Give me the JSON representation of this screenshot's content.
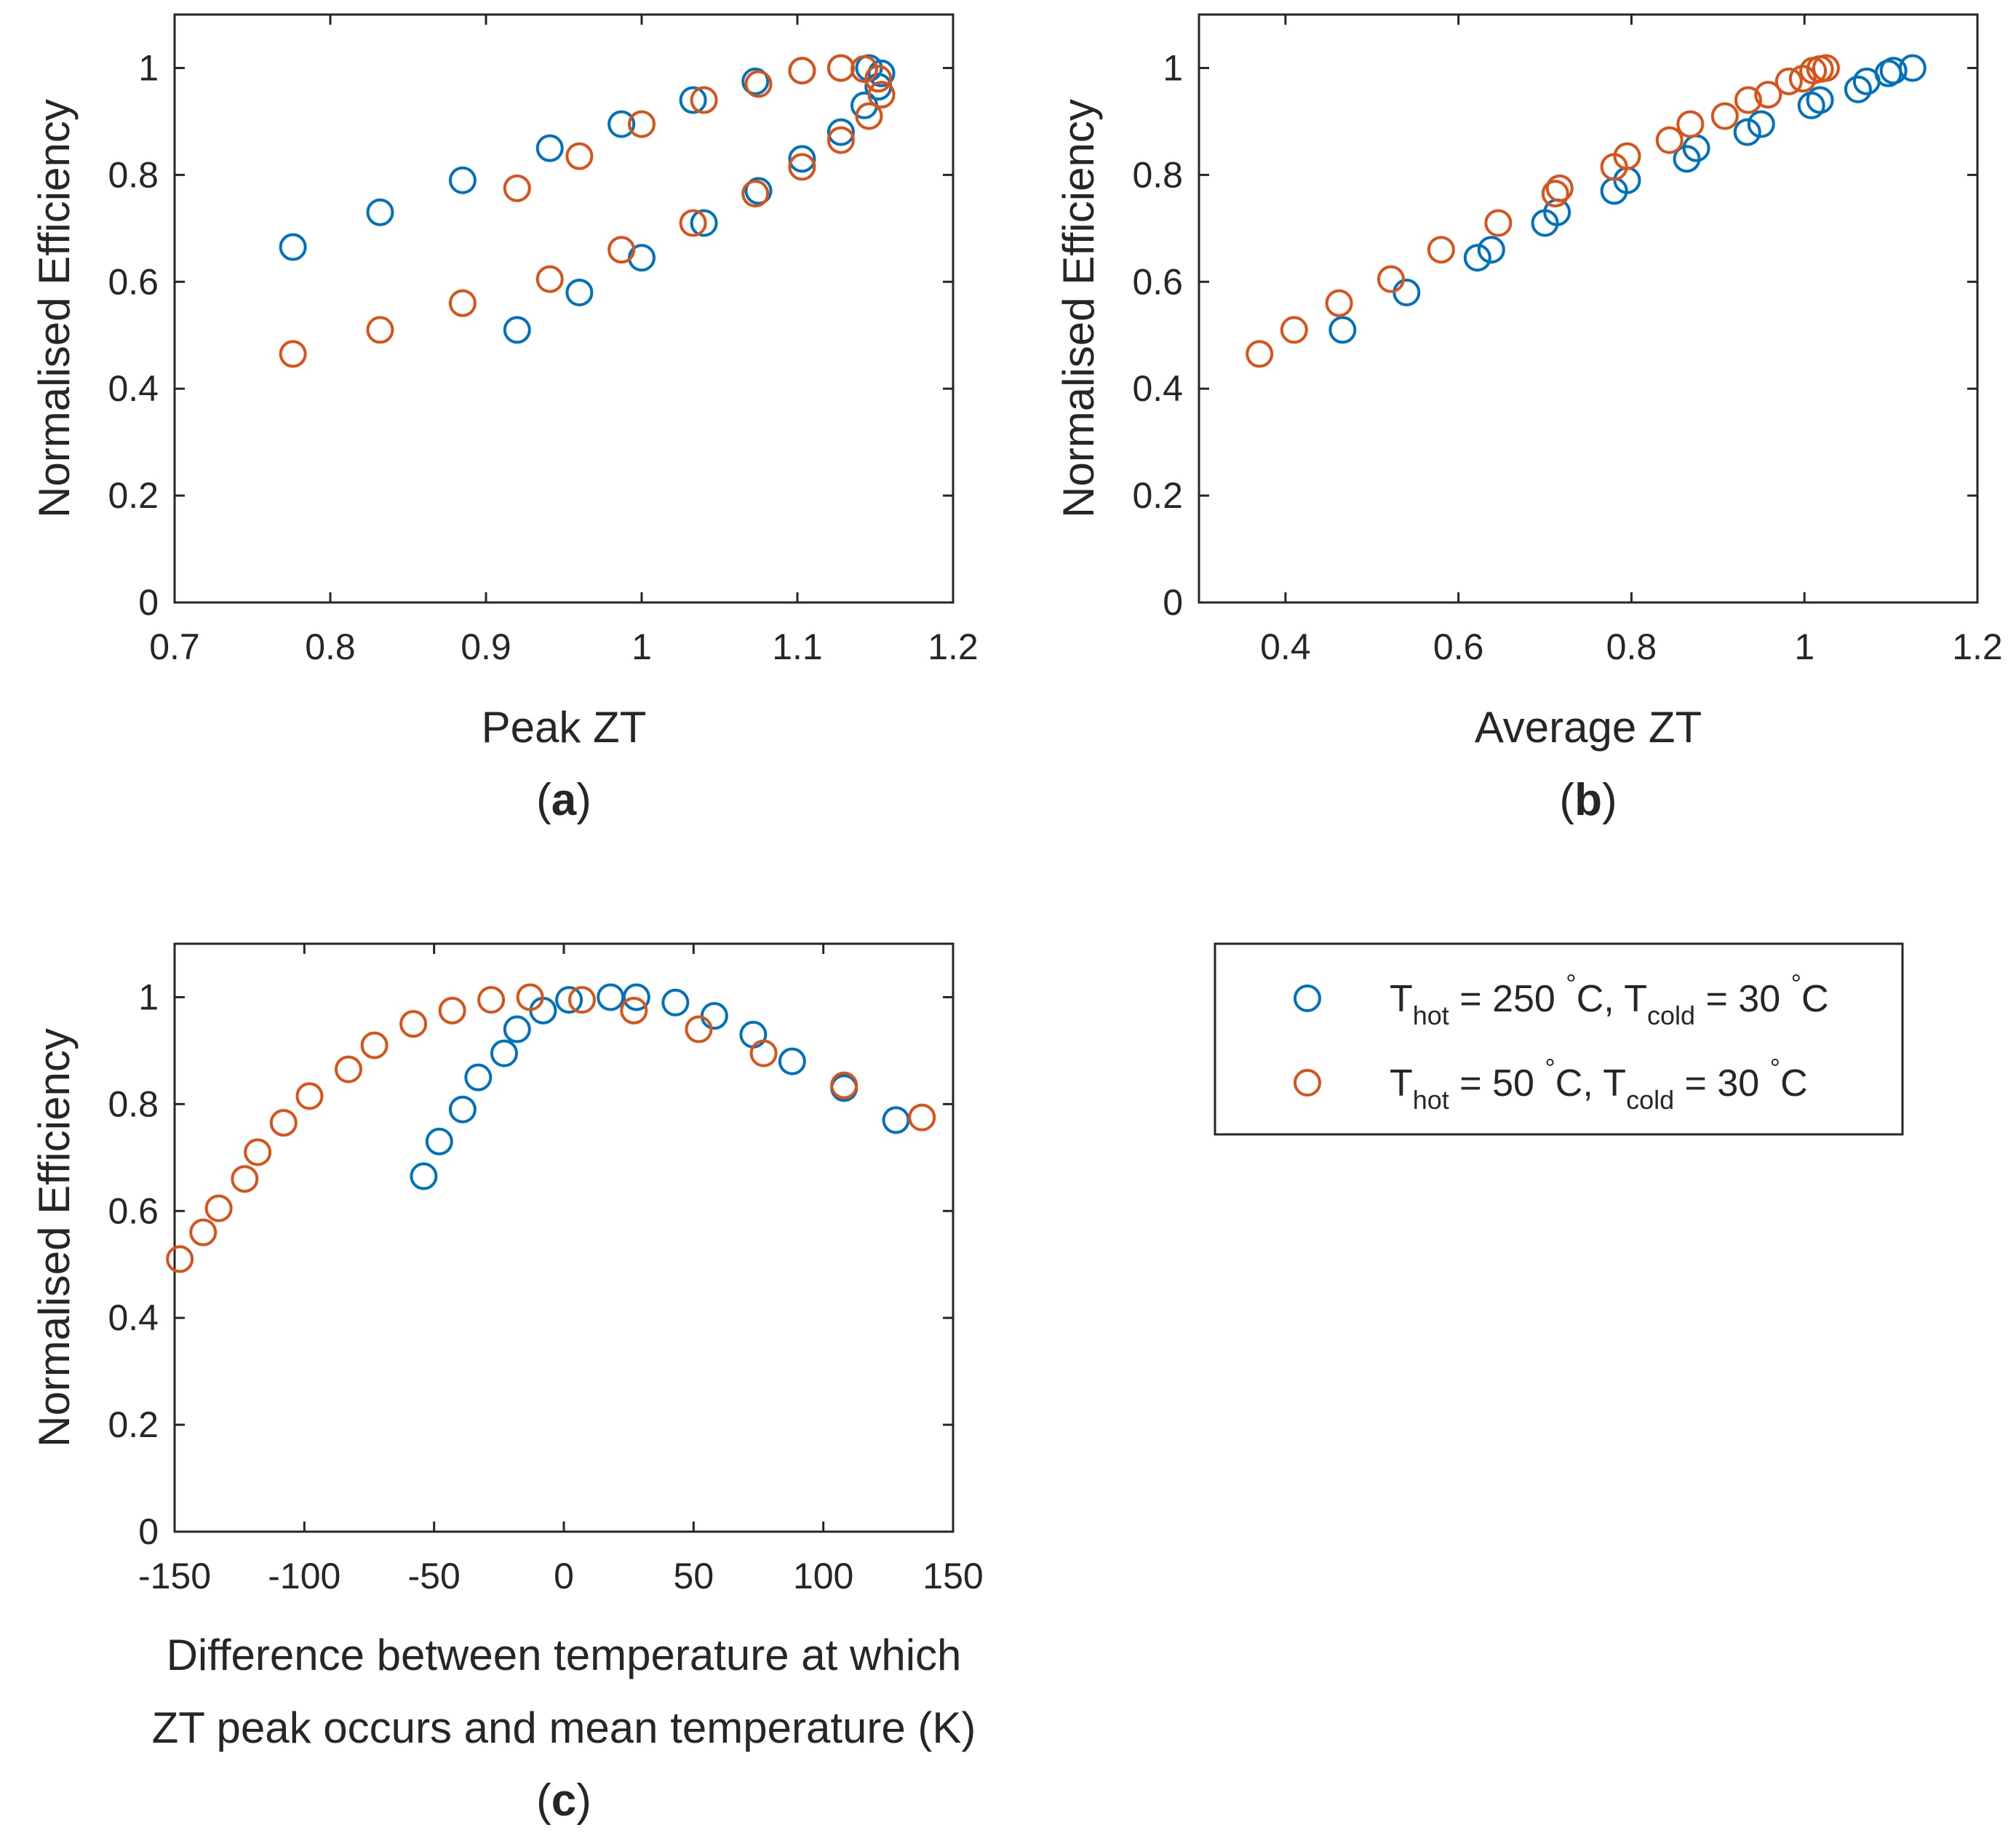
{
  "figure": {
    "legend": {
      "entries": [
        {
          "series": "blue",
          "base": "T",
          "sub_hot": "hot",
          "eq_hot": " = 250 ",
          "deg": "°",
          "unit_hot": "C,  ",
          "base2": "T",
          "sub_cold": "cold",
          "eq_cold": " = 30 ",
          "deg2": "°",
          "unit_cold": "C",
          "color": "#0072BD"
        },
        {
          "series": "orange",
          "base": "T",
          "sub_hot": "hot",
          "eq_hot": " = 50 ",
          "deg": "°",
          "unit_hot": "C,  ",
          "base2": "T",
          "sub_cold": "cold",
          "eq_cold": " = 30 ",
          "deg2": "°",
          "unit_cold": "C",
          "color": "#D95319"
        }
      ]
    }
  },
  "chart_data": [
    {
      "id": "a",
      "panel_label": "a",
      "type": "scatter",
      "xlabel": "Peak ZT",
      "ylabel": "Normalised Efficiency",
      "xlim": [
        0.7,
        1.2
      ],
      "ylim": [
        0,
        1.1
      ],
      "xticks": [
        0.7,
        0.8,
        0.9,
        1,
        1.1,
        1.2
      ],
      "xtick_labels": [
        "0.7",
        "0.8",
        "0.9",
        "1",
        "1.1",
        "1.2"
      ],
      "yticks": [
        0,
        0.2,
        0.4,
        0.6,
        0.8,
        1
      ],
      "ytick_labels": [
        "0",
        "0.2",
        "0.4",
        "0.6",
        "0.8",
        "1"
      ],
      "series": [
        {
          "name": "Thot = 250 °C, Tcold = 30 °C",
          "color": "#0072BD",
          "x": [
            0.776,
            0.832,
            0.885,
            0.941,
            0.987,
            1.033,
            1.073,
            1.103,
            1.128,
            1.146,
            1.154,
            1.152,
            1.143,
            1.128,
            1.103,
            1.075,
            1.04,
            1.0,
            0.96,
            0.92
          ],
          "y": [
            0.665,
            0.73,
            0.79,
            0.85,
            0.895,
            0.94,
            0.975,
            0.995,
            1.0,
            1.0,
            0.99,
            0.965,
            0.93,
            0.88,
            0.83,
            0.77,
            0.71,
            0.645,
            0.58,
            0.51
          ]
        },
        {
          "name": "Thot = 50 °C, Tcold = 30 °C",
          "color": "#D95319",
          "x": [
            0.776,
            0.832,
            0.885,
            0.941,
            0.987,
            1.033,
            1.073,
            1.103,
            1.128,
            1.146,
            1.154,
            1.152,
            1.143,
            1.128,
            1.103,
            1.075,
            1.04,
            1.0,
            0.96,
            0.92
          ],
          "y": [
            0.465,
            0.51,
            0.56,
            0.605,
            0.66,
            0.71,
            0.765,
            0.815,
            0.865,
            0.91,
            0.95,
            0.98,
            0.998,
            1.0,
            0.995,
            0.97,
            0.94,
            0.895,
            0.835,
            0.775
          ]
        }
      ]
    },
    {
      "id": "b",
      "panel_label": "b",
      "type": "scatter",
      "xlabel": "Average ZT",
      "ylabel": "Normalised Efficiency",
      "xlim": [
        0.3,
        1.2
      ],
      "ylim": [
        0,
        1.1
      ],
      "xticks": [
        0.4,
        0.6,
        0.8,
        1,
        1.2
      ],
      "xtick_labels": [
        "0.4",
        "0.6",
        "0.8",
        "1",
        "1.2"
      ],
      "yticks": [
        0,
        0.2,
        0.4,
        0.6,
        0.8,
        1
      ],
      "ytick_labels": [
        "0",
        "0.2",
        "0.4",
        "0.6",
        "0.8",
        "1"
      ],
      "series": [
        {
          "name": "Thot = 250 °C, Tcold = 30 °C",
          "color": "#0072BD",
          "x": [
            0.466,
            0.54,
            0.622,
            0.638,
            0.7,
            0.714,
            0.78,
            0.795,
            0.864,
            0.875,
            0.934,
            0.95,
            1.008,
            1.018,
            1.062,
            1.072,
            1.097,
            1.103,
            1.125
          ],
          "y": [
            0.51,
            0.58,
            0.645,
            0.66,
            0.71,
            0.73,
            0.77,
            0.79,
            0.83,
            0.85,
            0.88,
            0.895,
            0.93,
            0.94,
            0.96,
            0.975,
            0.99,
            0.995,
            1.0
          ]
        },
        {
          "name": "Thot = 50 °C, Tcold = 30 °C",
          "color": "#D95319",
          "x": [
            0.37,
            0.41,
            0.462,
            0.522,
            0.58,
            0.646,
            0.712,
            0.717,
            0.78,
            0.795,
            0.844,
            0.868,
            0.908,
            0.935,
            0.958,
            0.982,
            0.998,
            1.01,
            1.018,
            1.025
          ],
          "y": [
            0.465,
            0.51,
            0.56,
            0.605,
            0.66,
            0.71,
            0.765,
            0.775,
            0.815,
            0.835,
            0.865,
            0.895,
            0.91,
            0.94,
            0.95,
            0.975,
            0.98,
            0.995,
            0.998,
            1.0
          ]
        }
      ]
    },
    {
      "id": "c",
      "panel_label": "c",
      "type": "scatter",
      "xlabel_lines": [
        "Difference between temperature at which",
        "ZT peak occurs and mean temperature (K)"
      ],
      "ylabel": "Normalised Efficiency",
      "xlim": [
        -150,
        150
      ],
      "ylim": [
        0,
        1.1
      ],
      "xticks": [
        -150,
        -100,
        -50,
        0,
        50,
        100,
        150
      ],
      "xtick_labels": [
        "-150",
        "-100",
        "-50",
        "0",
        "50",
        "100",
        "150"
      ],
      "yticks": [
        0,
        0.2,
        0.4,
        0.6,
        0.8,
        1
      ],
      "ytick_labels": [
        "0",
        "0.2",
        "0.4",
        "0.6",
        "0.8",
        "1"
      ],
      "series": [
        {
          "name": "Thot = 250 °C, Tcold = 30 °C",
          "color": "#0072BD",
          "x": [
            -54,
            -48,
            -39,
            -33,
            -23,
            -18,
            -8,
            2,
            18,
            28,
            43,
            58,
            73,
            88,
            108,
            128
          ],
          "y": [
            0.665,
            0.73,
            0.79,
            0.85,
            0.895,
            0.94,
            0.975,
            0.995,
            1.0,
            1.0,
            0.99,
            0.965,
            0.93,
            0.88,
            0.83,
            0.77
          ]
        },
        {
          "name": "Thot = 50 °C, Tcold = 30 °C",
          "color": "#D95319",
          "x": [
            -148,
            -139,
            -133,
            -123,
            -118,
            -108,
            -98,
            -83,
            -73,
            -58,
            -43,
            -28,
            -13,
            7,
            27,
            52,
            77,
            108,
            138
          ],
          "y": [
            0.51,
            0.56,
            0.605,
            0.66,
            0.71,
            0.765,
            0.815,
            0.865,
            0.91,
            0.95,
            0.975,
            0.995,
            1.0,
            0.995,
            0.975,
            0.94,
            0.895,
            0.835,
            0.775
          ]
        }
      ]
    }
  ]
}
